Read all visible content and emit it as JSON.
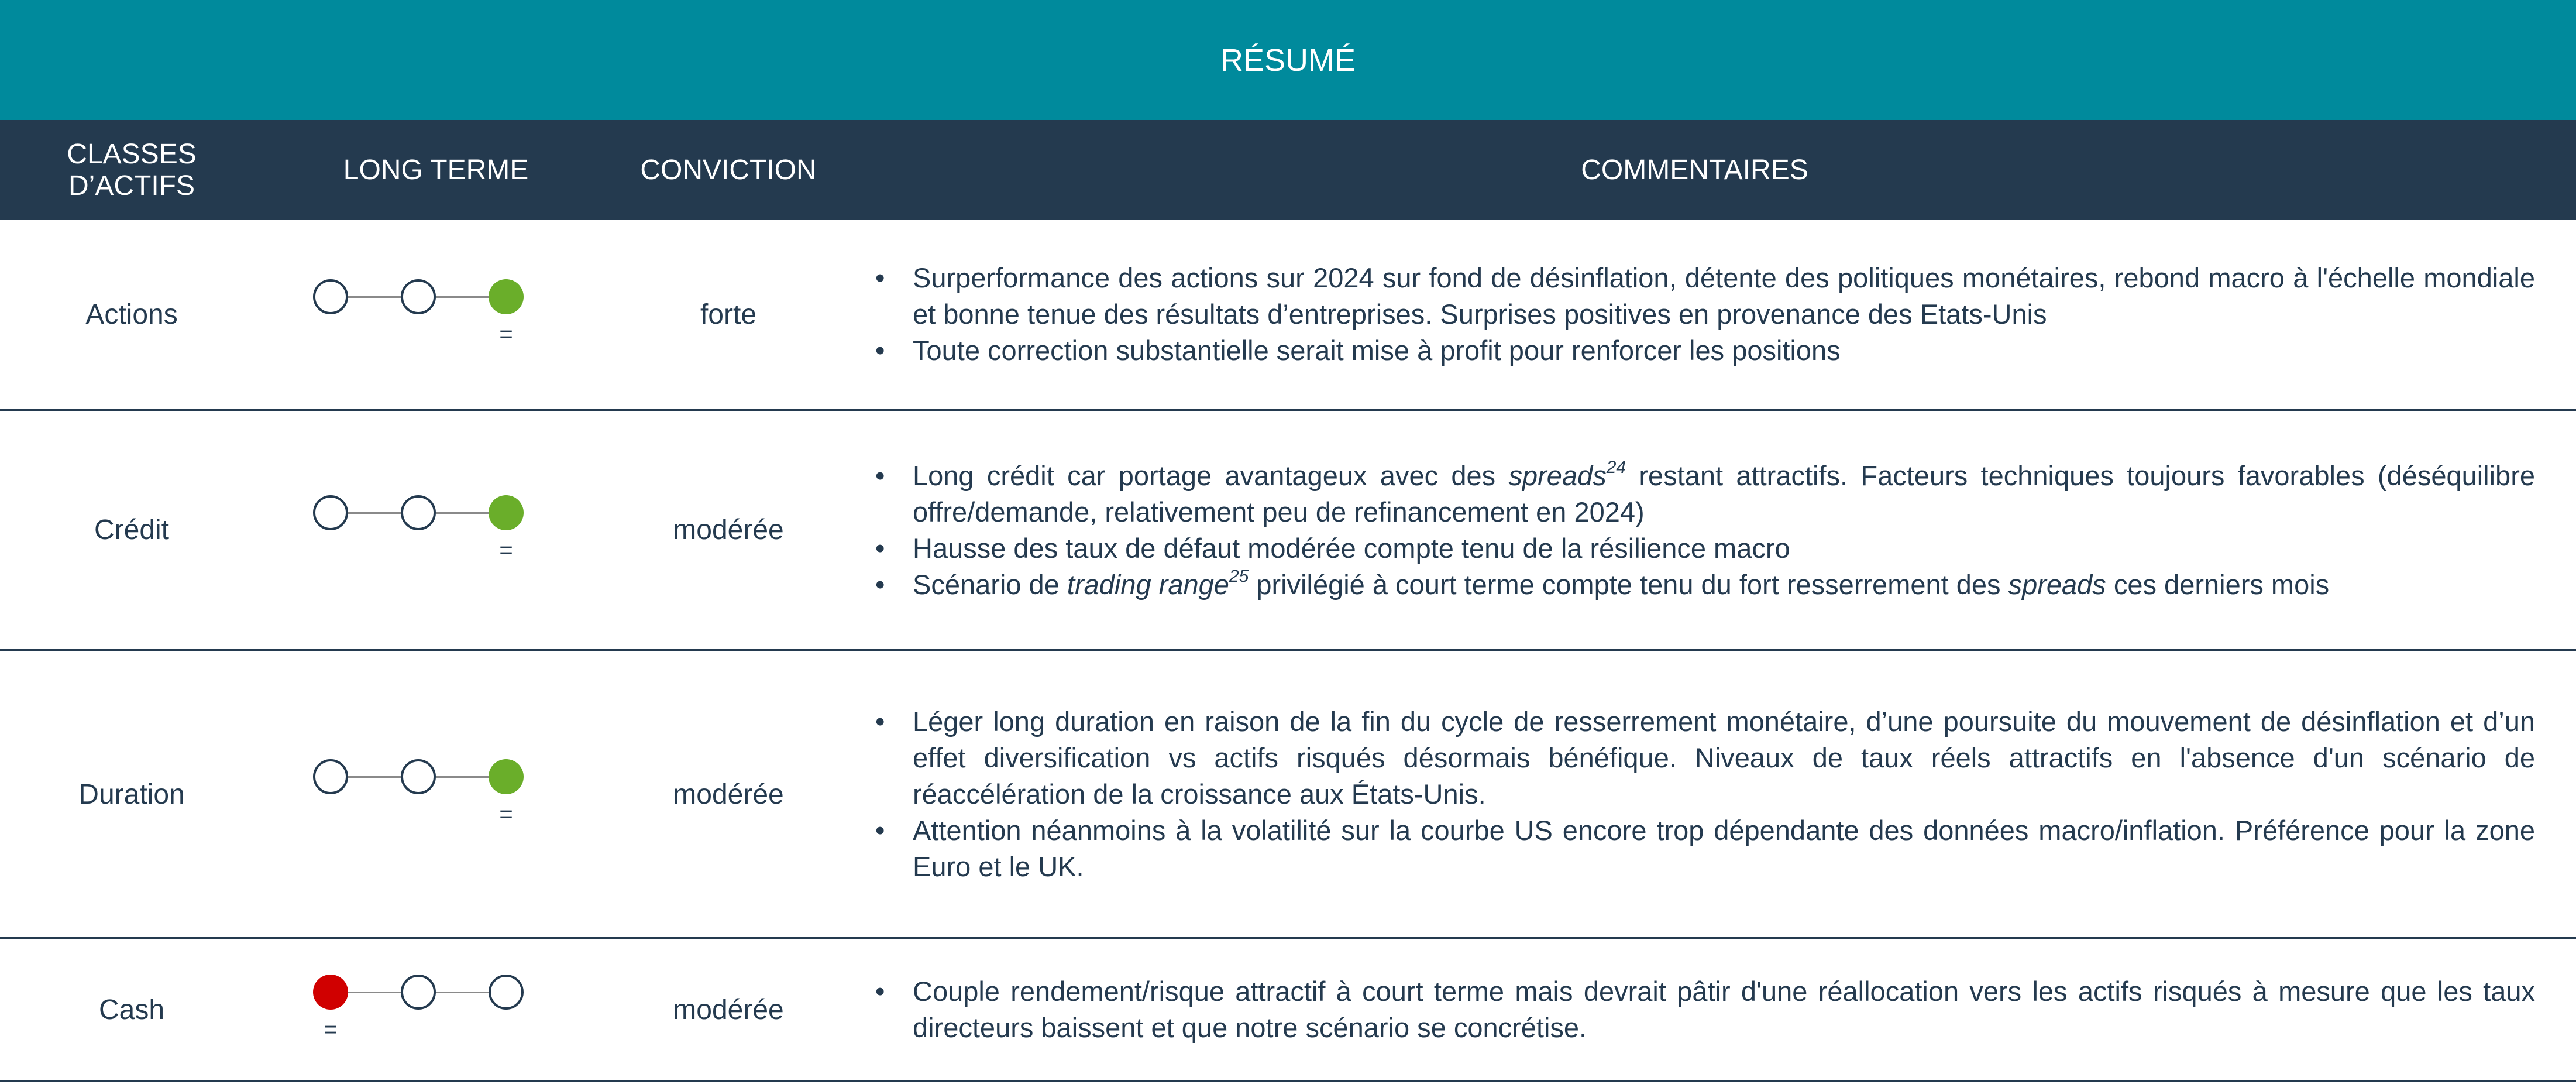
{
  "title": "RÉSUMÉ",
  "headers": {
    "asset": "CLASSES\nD’ACTIFS",
    "long_term": "LONG TERME",
    "conviction": "CONVICTION",
    "comments": "COMMENTAIRES"
  },
  "colors": {
    "teal": "#008a9c",
    "navy": "#243a4f",
    "positive": "#6aae2a",
    "negative": "#d00000"
  },
  "rows": [
    {
      "asset": "Actions",
      "long_term": {
        "level": 3,
        "of": 3,
        "color": "#6aae2a",
        "change": "="
      },
      "conviction": "forte",
      "comments": [
        [
          {
            "t": "Surperformance des actions sur 2024 sur fond de désinflation, détente des politiques monétaires, rebond macro à l'échelle mondiale et bonne tenue des résultats d’entreprises. Surprises positives en provenance des Etats-Unis"
          }
        ],
        [
          {
            "t": "Toute correction substantielle serait mise à profit pour renforcer les positions"
          }
        ]
      ]
    },
    {
      "asset": "Crédit",
      "long_term": {
        "level": 3,
        "of": 3,
        "color": "#6aae2a",
        "change": "="
      },
      "conviction": "modérée",
      "comments": [
        [
          {
            "t": "Long crédit car portage avantageux avec des "
          },
          {
            "t": "spreads",
            "i": true
          },
          {
            "t": "24",
            "sup": true
          },
          {
            "t": " restant attractifs. Facteurs techniques toujours favorables (déséquilibre offre/demande, relativement peu de refinancement en 2024)"
          }
        ],
        [
          {
            "t": "Hausse des taux de défaut modérée compte tenu de la résilience macro"
          }
        ],
        [
          {
            "t": "Scénario de "
          },
          {
            "t": "trading range",
            "i": true
          },
          {
            "t": "25",
            "sup": true
          },
          {
            "t": " privilégié à court terme compte tenu du fort resserrement des "
          },
          {
            "t": "spreads",
            "i": true
          },
          {
            "t": " ces derniers mois"
          }
        ]
      ]
    },
    {
      "asset": "Duration",
      "long_term": {
        "level": 3,
        "of": 3,
        "color": "#6aae2a",
        "change": "="
      },
      "conviction": "modérée",
      "comments": [
        [
          {
            "t": "Léger long duration en raison de la fin du cycle de resserrement monétaire, d’une poursuite du mouvement de désinflation et d’un effet diversification vs actifs risqués désormais bénéfique. Niveaux de taux réels attractifs en l'absence d'un scénario de réaccélération de la croissance aux États-Unis."
          }
        ],
        [
          {
            "t": "Attention néanmoins à la volatilité sur la courbe US encore trop dépendante des données macro/inflation. Préférence pour la zone Euro et le UK."
          }
        ]
      ]
    },
    {
      "asset": "Cash",
      "long_term": {
        "level": 1,
        "of": 3,
        "color": "#d00000",
        "change": "="
      },
      "conviction": "modérée",
      "comments": [
        [
          {
            "t": "Couple rendement/risque attractif à court terme mais devrait pâtir d'une réallocation vers les actifs risqués à mesure que les taux directeurs baissent et que notre scénario se concrétise."
          }
        ]
      ]
    }
  ]
}
